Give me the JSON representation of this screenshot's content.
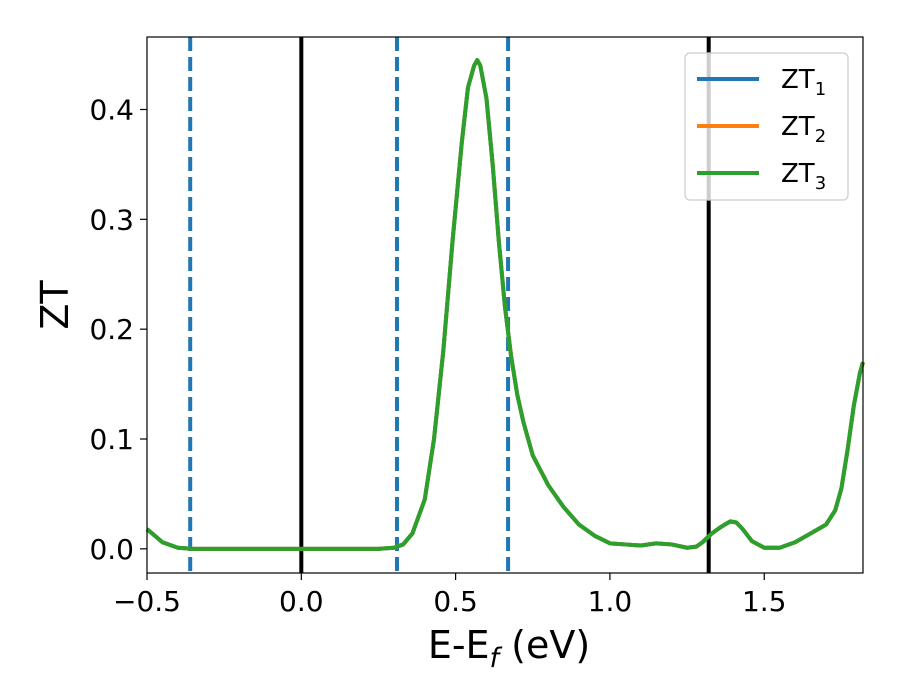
{
  "chart_data": {
    "type": "line",
    "xlabel": "E-E",
    "xlabel_sub": "f",
    "xlabel_unit": " (eV)",
    "ylabel": "ZT",
    "xlim": [
      -0.5,
      1.82
    ],
    "ylim": [
      -0.022,
      0.466
    ],
    "grid": false,
    "legend_position": "top-right",
    "xticks": [
      -0.5,
      0.0,
      0.5,
      1.0,
      1.5
    ],
    "xtick_labels": [
      "−0.5",
      "0.0",
      "0.5",
      "1.0",
      "1.5"
    ],
    "yticks": [
      0.0,
      0.1,
      0.2,
      0.3,
      0.4
    ],
    "ytick_labels": [
      "0.0",
      "0.1",
      "0.2",
      "0.3",
      "0.4"
    ],
    "vlines_solid": [
      0.0,
      1.32
    ],
    "vlines_dashed": [
      -0.36,
      0.31,
      0.67
    ],
    "vline_solid_color": "#000000",
    "vline_dashed_color": "#1f77b4",
    "series": [
      {
        "name": "ZT",
        "sub": "1",
        "color": "#1f77b4"
      },
      {
        "name": "ZT",
        "sub": "2",
        "color": "#ff7f0e"
      },
      {
        "name": "ZT",
        "sub": "3",
        "color": "#2ca02c"
      }
    ],
    "x": [
      -0.5,
      -0.45,
      -0.4,
      -0.35,
      -0.3,
      -0.2,
      -0.1,
      0.0,
      0.1,
      0.2,
      0.25,
      0.3,
      0.33,
      0.36,
      0.4,
      0.43,
      0.46,
      0.49,
      0.52,
      0.54,
      0.56,
      0.57,
      0.58,
      0.6,
      0.62,
      0.64,
      0.66,
      0.68,
      0.7,
      0.72,
      0.75,
      0.8,
      0.85,
      0.9,
      0.95,
      1.0,
      1.05,
      1.1,
      1.15,
      1.2,
      1.25,
      1.28,
      1.3,
      1.33,
      1.36,
      1.39,
      1.41,
      1.43,
      1.46,
      1.5,
      1.55,
      1.6,
      1.65,
      1.7,
      1.73,
      1.75,
      1.77,
      1.79,
      1.81,
      1.82
    ],
    "y": [
      0.018,
      0.006,
      0.001,
      0.0,
      0.0,
      0.0,
      0.0,
      0.0,
      0.0,
      0.0,
      0.0,
      0.001,
      0.004,
      0.014,
      0.045,
      0.1,
      0.18,
      0.28,
      0.37,
      0.42,
      0.44,
      0.445,
      0.44,
      0.41,
      0.35,
      0.28,
      0.22,
      0.175,
      0.14,
      0.115,
      0.085,
      0.058,
      0.038,
      0.022,
      0.012,
      0.005,
      0.004,
      0.003,
      0.005,
      0.004,
      0.001,
      0.002,
      0.006,
      0.014,
      0.02,
      0.025,
      0.024,
      0.018,
      0.007,
      0.001,
      0.001,
      0.006,
      0.014,
      0.022,
      0.035,
      0.055,
      0.09,
      0.13,
      0.16,
      0.17
    ]
  }
}
